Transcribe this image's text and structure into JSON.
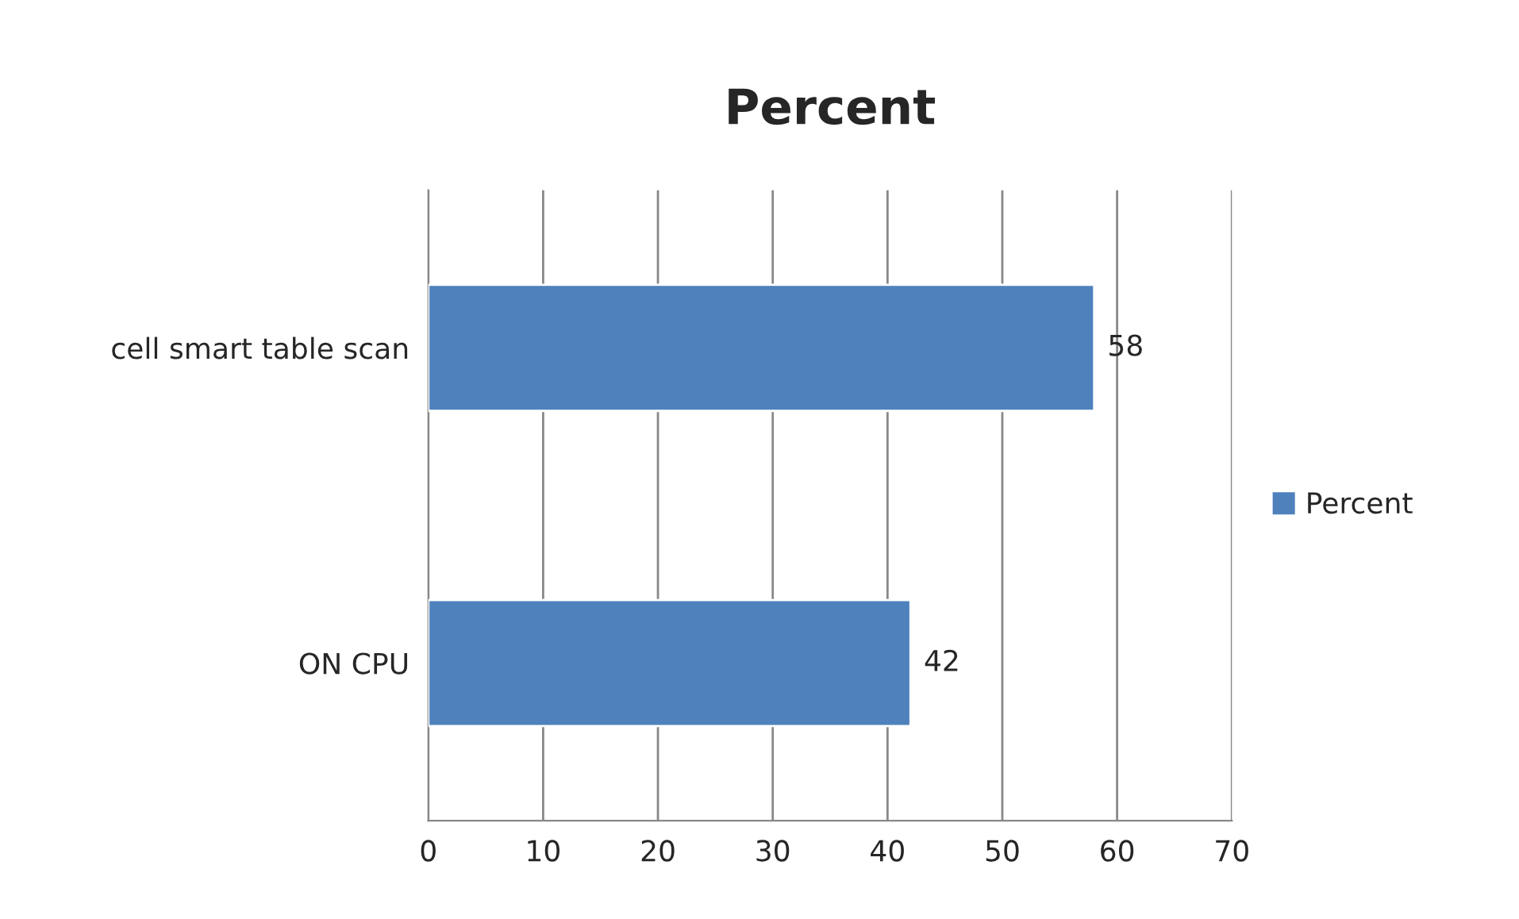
{
  "chart_data": {
    "type": "bar",
    "orientation": "horizontal",
    "title": "Percent",
    "categories": [
      "cell smart table scan",
      "ON CPU"
    ],
    "series": [
      {
        "name": "Percent",
        "color": "#4f81bd",
        "values": [
          58,
          42
        ]
      }
    ],
    "xlim": [
      0,
      70
    ],
    "xticks": [
      0,
      10,
      20,
      30,
      40,
      50,
      60,
      70
    ],
    "grid": "x",
    "legend": "right",
    "data_labels": true
  }
}
